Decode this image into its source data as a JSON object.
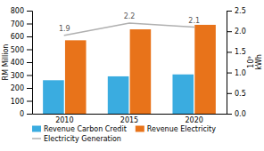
{
  "chart_data": {
    "type": "bar",
    "categories": [
      "2010",
      "2015",
      "2020"
    ],
    "series": [
      {
        "name": "Revenue Carbon Credit",
        "color": "#3aace0",
        "values": [
          260,
          290,
          305
        ]
      },
      {
        "name": "Revenue Electricity",
        "color": "#e8731a",
        "values": [
          570,
          655,
          690
        ]
      },
      {
        "name": "Electricity Generation",
        "color": "#b0b0b0",
        "type": "line",
        "axis": "y2",
        "data_labels": true,
        "values": [
          1.9,
          2.2,
          2.1
        ]
      }
    ],
    "ylabel": "RM Million",
    "y2label": "10⁹\nkWh",
    "ylim": [
      0,
      800
    ],
    "yticks": [
      0,
      100,
      200,
      300,
      400,
      500,
      600,
      700,
      800
    ],
    "y2lim": [
      0,
      2.5
    ],
    "y2ticks": [
      {
        "value": 0,
        "label": "0.0"
      },
      0.5,
      {
        "value": 1.0,
        "label": "1.0"
      },
      1.5,
      {
        "value": 2.0,
        "label": "2.0"
      },
      2.5
    ],
    "legend": "bottom"
  }
}
